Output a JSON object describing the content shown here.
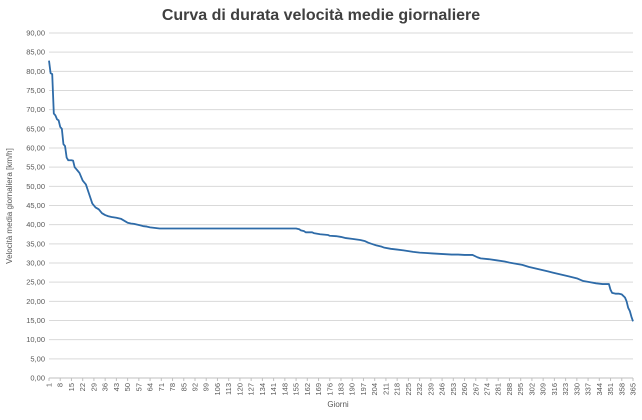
{
  "chart_data": {
    "type": "line",
    "title": "Curva di durata velocità medie giornaliere",
    "xlabel": "Giorni",
    "ylabel": "Velocità media giornaliera [km/h]",
    "xlim": [
      1,
      365
    ],
    "ylim": [
      0,
      90
    ],
    "y_ticks": [
      "0,00",
      "5,00",
      "10,00",
      "15,00",
      "20,00",
      "25,00",
      "30,00",
      "35,00",
      "40,00",
      "45,00",
      "50,00",
      "55,00",
      "60,00",
      "65,00",
      "70,00",
      "75,00",
      "80,00",
      "85,00",
      "90,00"
    ],
    "x_ticks": [
      "1",
      "8",
      "15",
      "22",
      "29",
      "36",
      "43",
      "50",
      "57",
      "64",
      "71",
      "78",
      "85",
      "92",
      "99",
      "106",
      "113",
      "120",
      "127",
      "134",
      "141",
      "148",
      "155",
      "162",
      "169",
      "176",
      "183",
      "190",
      "197",
      "204",
      "211",
      "218",
      "225",
      "232",
      "239",
      "246",
      "253",
      "260",
      "267",
      "274",
      "281",
      "288",
      "295",
      "302",
      "309",
      "316",
      "323",
      "330",
      "337",
      "344",
      "351",
      "358",
      "365"
    ],
    "grid": true,
    "legend": "none",
    "line_color": "#2e6ba8",
    "series": [
      {
        "x": [
          1,
          2,
          3,
          4,
          5,
          6,
          7,
          8,
          9,
          10,
          11,
          12,
          13,
          14,
          15,
          16,
          17,
          18,
          19,
          20,
          22,
          24,
          26,
          28,
          30,
          32,
          34,
          36,
          38,
          40,
          43,
          46,
          50,
          52,
          54,
          56,
          58,
          60,
          62,
          64,
          66,
          68,
          70,
          71,
          80,
          90,
          100,
          120,
          140,
          155,
          157,
          158,
          160,
          161,
          165,
          166,
          170,
          175,
          176,
          180,
          183,
          186,
          190,
          195,
          198,
          200,
          202,
          205,
          208,
          210,
          214,
          218,
          222,
          225,
          228,
          232,
          236,
          240,
          244,
          248,
          252,
          256,
          260,
          265,
          268,
          270,
          275,
          280,
          285,
          288,
          292,
          296,
          300,
          304,
          308,
          312,
          315,
          320,
          325,
          330,
          334,
          338,
          342,
          346,
          350,
          351,
          352,
          354,
          356,
          358,
          360,
          361,
          362,
          363,
          364,
          365
        ],
        "y": [
          82.8,
          79.5,
          79.3,
          69.0,
          68.5,
          67.5,
          67.2,
          65.5,
          65.0,
          61.0,
          60.5,
          57.5,
          56.8,
          56.8,
          56.8,
          56.7,
          55.0,
          54.5,
          54.0,
          53.5,
          51.5,
          50.5,
          48.0,
          45.5,
          44.5,
          44.0,
          43.0,
          42.5,
          42.2,
          42.0,
          41.8,
          41.5,
          40.5,
          40.3,
          40.2,
          40.0,
          39.8,
          39.6,
          39.5,
          39.3,
          39.2,
          39.1,
          39.0,
          39.0,
          39.0,
          39.0,
          39.0,
          39.0,
          39.0,
          39.0,
          38.8,
          38.5,
          38.3,
          38.0,
          38.0,
          37.8,
          37.5,
          37.3,
          37.1,
          37.0,
          36.8,
          36.5,
          36.3,
          36.0,
          35.7,
          35.3,
          35.0,
          34.6,
          34.3,
          34.0,
          33.7,
          33.5,
          33.3,
          33.1,
          32.9,
          32.7,
          32.6,
          32.5,
          32.4,
          32.3,
          32.2,
          32.2,
          32.1,
          32.1,
          31.5,
          31.2,
          31.0,
          30.7,
          30.4,
          30.1,
          29.8,
          29.5,
          29.0,
          28.6,
          28.2,
          27.8,
          27.5,
          27.0,
          26.5,
          26.0,
          25.3,
          25.0,
          24.7,
          24.5,
          24.5,
          23.0,
          22.2,
          22.0,
          22.0,
          21.8,
          21.0,
          20.0,
          18.3,
          17.5,
          16.0,
          14.8
        ]
      }
    ]
  }
}
